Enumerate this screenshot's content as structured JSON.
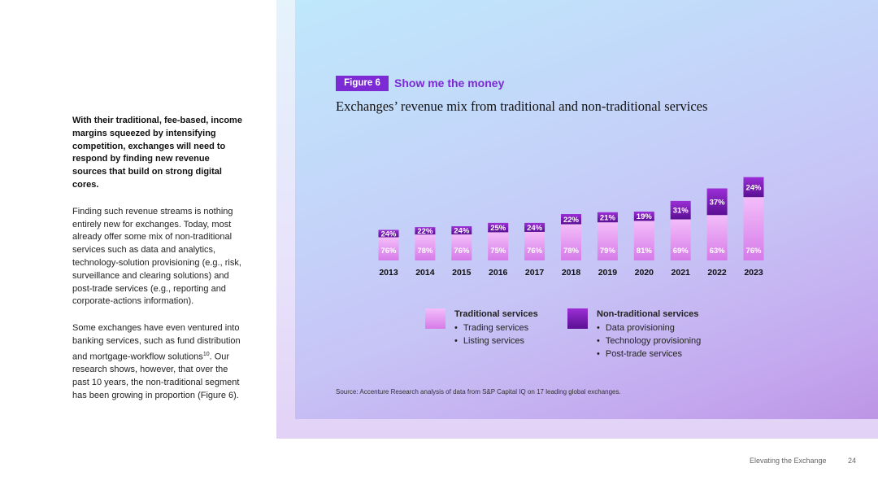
{
  "body_text": {
    "lead": "With their traditional, fee-based, income margins squeezed by intensifying competition, exchanges will need to respond by finding new revenue sources that build on strong digital cores.",
    "para1": "Finding such revenue streams is nothing entirely new for exchanges. Today, most already offer some mix of non-traditional services such as data and analytics, technology-solution provisioning (e.g., risk, surveillance and clearing solutions) and post-trade services (e.g., reporting and corporate-actions information).",
    "para2_before": "Some exchanges have even ventured into banking services, such as fund distribution and mortgage-workflow solutions",
    "para2_sup": "10",
    "para2_after": ". Our research shows, however, that over the past 10 years, the non-traditional segment has been growing in proportion (Figure 6)."
  },
  "figure": {
    "badge": "Figure 6",
    "heading": "Show me the money",
    "title": "Exchanges’ revenue mix from traditional and non-traditional services",
    "source": "Source: Accenture Research analysis of data from S&P Capital IQ on 17 leading global exchanges."
  },
  "legend": {
    "traditional": {
      "title": "Traditional services",
      "items": [
        "Trading services",
        "Listing services"
      ]
    },
    "non_traditional": {
      "title": "Non-traditional services",
      "items": [
        "Data provisioning",
        "Technology provisioning",
        "Post-trade services"
      ]
    }
  },
  "chart_data": {
    "type": "bar",
    "stacked": true,
    "categories": [
      "2013",
      "2014",
      "2015",
      "2016",
      "2017",
      "2018",
      "2019",
      "2020",
      "2021",
      "2022",
      "2023"
    ],
    "series": [
      {
        "name": "Traditional services",
        "values": [
          76,
          78,
          76,
          75,
          76,
          78,
          79,
          81,
          69,
          63,
          76
        ],
        "labels": [
          "76%",
          "78%",
          "76%",
          "75%",
          "76%",
          "78%",
          "79%",
          "81%",
          "69%",
          "63%",
          "76%"
        ]
      },
      {
        "name": "Non-traditional services",
        "values": [
          24,
          22,
          24,
          25,
          24,
          22,
          21,
          19,
          31,
          37,
          24
        ],
        "labels": [
          "24%",
          "22%",
          "24%",
          "25%",
          "24%",
          "22%",
          "21%",
          "19%",
          "31%",
          "37%",
          "24%"
        ]
      }
    ],
    "relative_total_revenue": [
      1.0,
      1.09,
      1.12,
      1.23,
      1.23,
      1.52,
      1.58,
      1.6,
      1.95,
      2.36,
      2.73
    ],
    "grid": false,
    "legend_position": "bottom"
  },
  "colors": {
    "traditional_top": "#f3bdf9",
    "traditional_bottom": "#d67be9",
    "non_traditional_top": "#9b2fd6",
    "non_traditional_bottom": "#5a0f92",
    "accent": "#7b2ad4"
  },
  "footer": {
    "title": "Elevating the Exchange",
    "page": "24"
  }
}
